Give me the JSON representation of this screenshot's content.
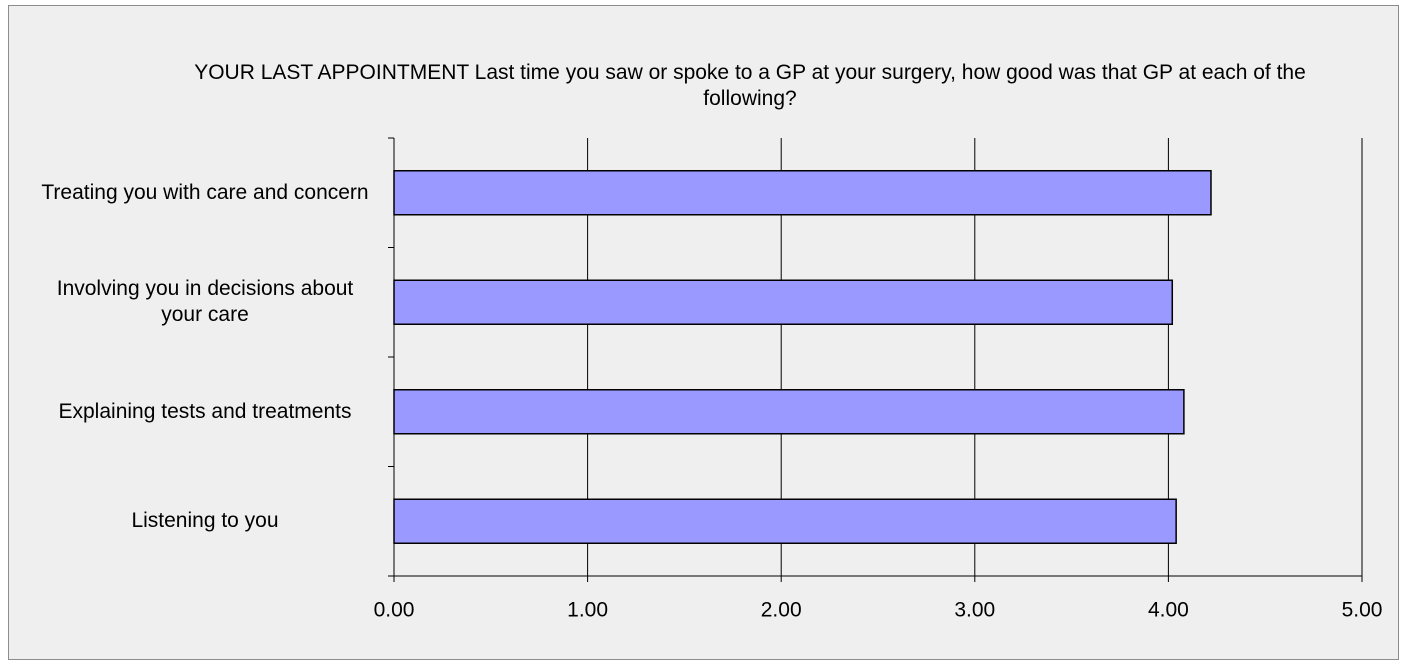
{
  "chart_data": {
    "type": "bar",
    "orientation": "horizontal",
    "title": "YOUR LAST APPOINTMENT Last time you saw or spoke to a GP at your surgery, how good was that GP at each of the following?",
    "categories": [
      "Treating you with care and concern",
      "Involving you in decisions about your care",
      "Explaining tests and treatments",
      "Listening to you"
    ],
    "values": [
      4.22,
      4.02,
      4.08,
      4.04
    ],
    "color": "#9999ff",
    "xlim": [
      0,
      5
    ],
    "xticks": [
      {
        "value": 0,
        "label": "0.00"
      },
      {
        "value": 1,
        "label": "1.00"
      },
      {
        "value": 2,
        "label": "2.00"
      },
      {
        "value": 3,
        "label": "3.00"
      },
      {
        "value": 4,
        "label": "4.00"
      },
      {
        "value": 5,
        "label": "5.00"
      }
    ],
    "grid": true
  }
}
